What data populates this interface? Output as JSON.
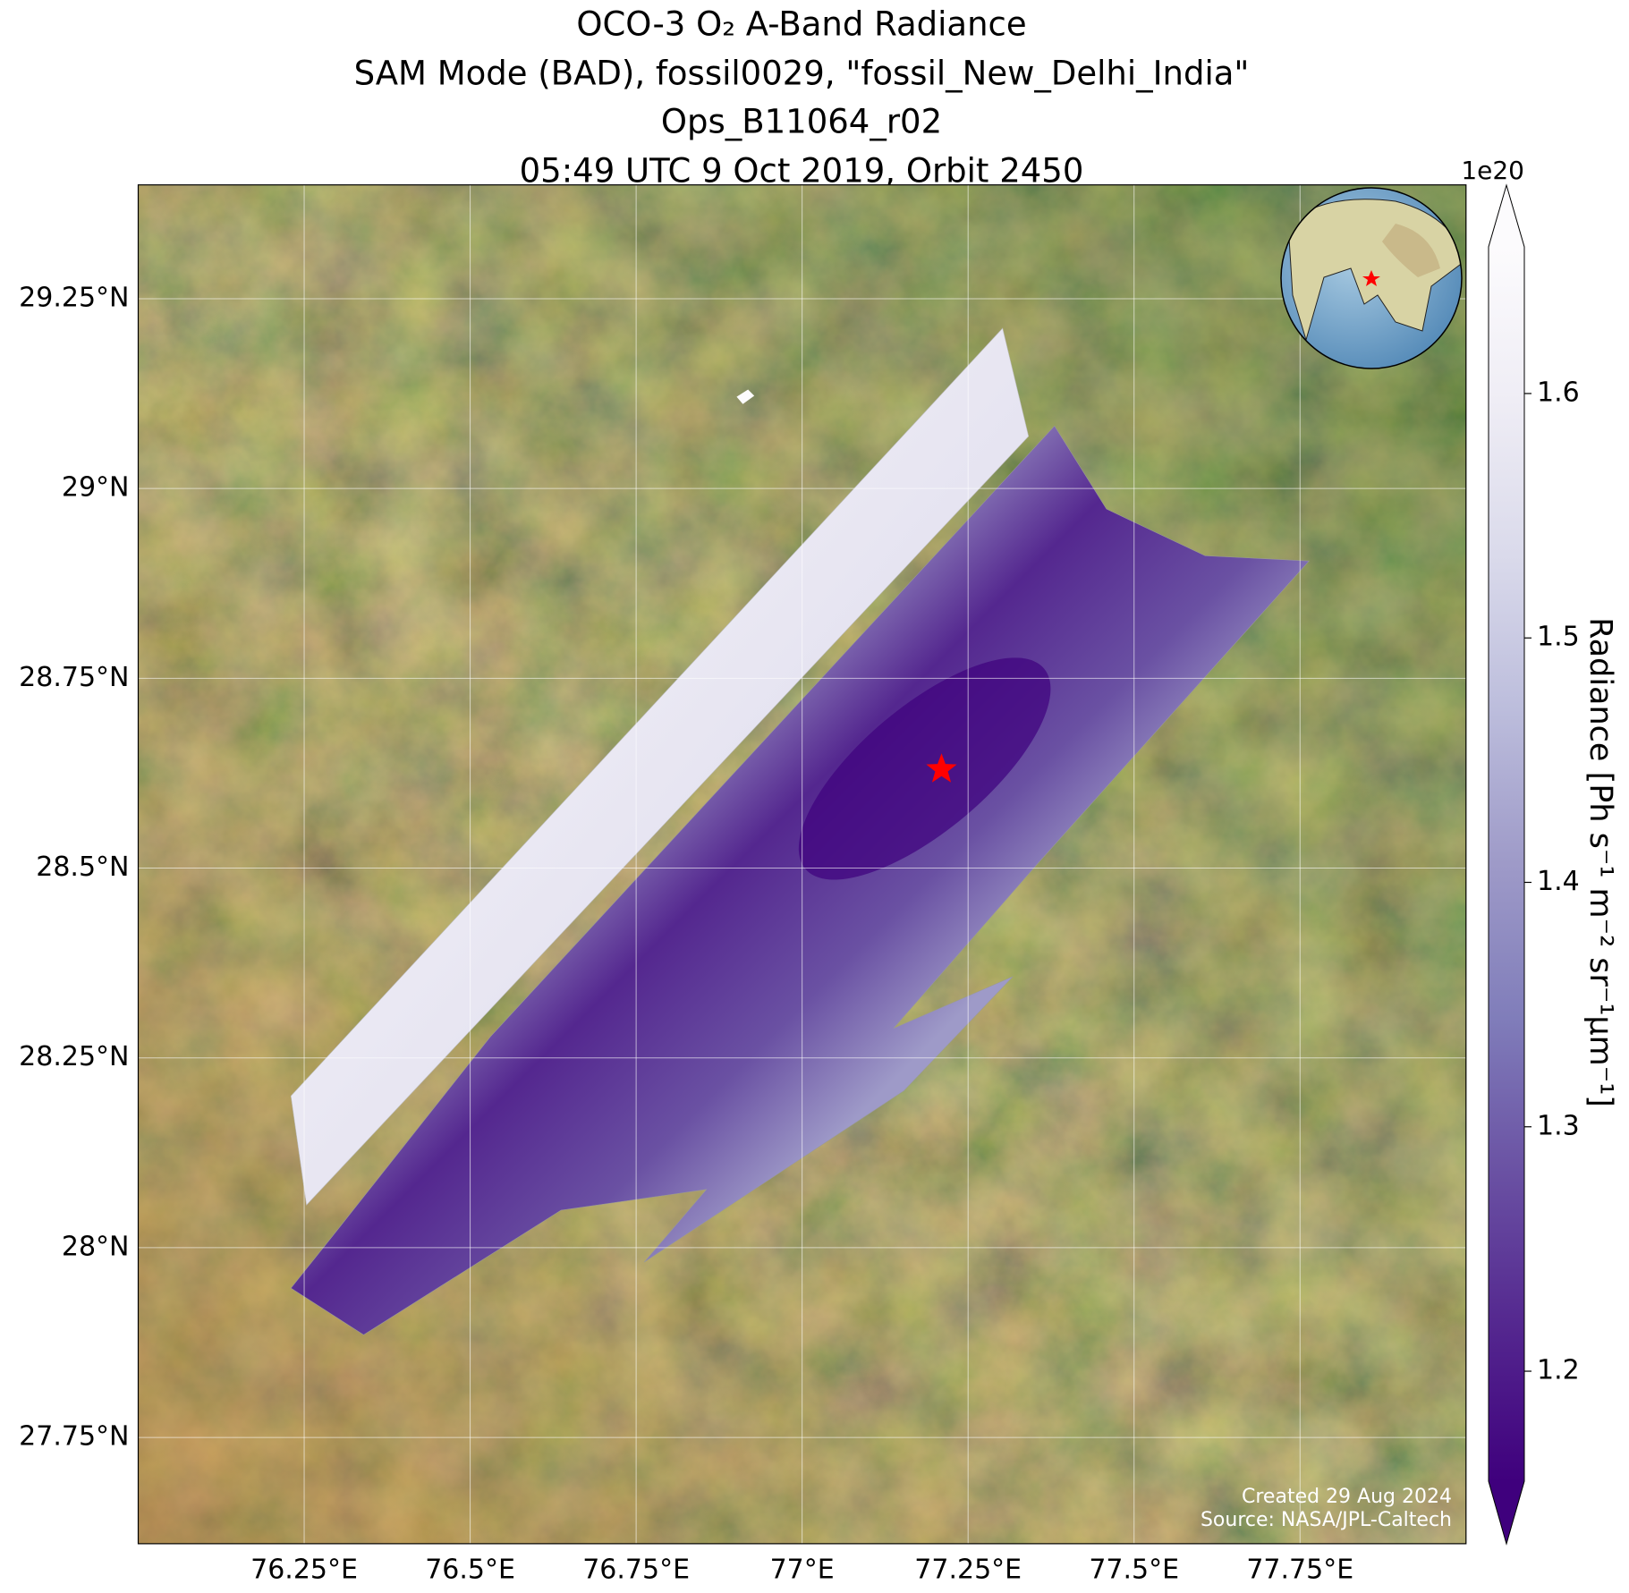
{
  "chart_data": {
    "type": "map",
    "title": [
      "OCO-3 O₂ A-Band Radiance",
      "SAM Mode (BAD), fossil0029, \"fossil_New_Delhi_India\"",
      "Ops_B11064_r02",
      "05:49 UTC 9 Oct 2019, Orbit 2450"
    ],
    "xlim": [
      76.0,
      78.0
    ],
    "ylim": [
      27.61,
      29.4
    ],
    "xticks": [
      {
        "value": 76.25,
        "label": "76.25°E"
      },
      {
        "value": 76.5,
        "label": "76.5°E"
      },
      {
        "value": 76.75,
        "label": "76.75°E"
      },
      {
        "value": 77,
        "label": "77°E"
      },
      {
        "value": 77.25,
        "label": "77.25°E"
      },
      {
        "value": 77.5,
        "label": "77.5°E"
      },
      {
        "value": 77.75,
        "label": "77.75°E"
      }
    ],
    "yticks": [
      {
        "value": 27.75,
        "label": "27.75°N"
      },
      {
        "value": 28,
        "label": "28°N"
      },
      {
        "value": 28.25,
        "label": "28.25°N"
      },
      {
        "value": 28.5,
        "label": "28.5°N"
      },
      {
        "value": 28.75,
        "label": "28.75°N"
      },
      {
        "value": 29,
        "label": "29°N"
      },
      {
        "value": 29.25,
        "label": "29.25°N"
      }
    ],
    "grid": true,
    "target": {
      "lon": 77.21,
      "lat": 28.63,
      "color": "#ff0000"
    },
    "colorbar": {
      "label": "Radiance [Ph s⁻¹ m⁻² sr⁻¹μm⁻¹]",
      "offset_label": "1e20",
      "lim": [
        1.155,
        1.66
      ],
      "ticks": [
        1.2,
        1.3,
        1.4,
        1.5,
        1.6
      ],
      "colors": [
        "#3f007d",
        "#54278f",
        "#6a51a3",
        "#807dba",
        "#9e9ac8",
        "#bcbddc",
        "#dadaeb",
        "#efedf5",
        "#fcfbfd"
      ],
      "extend": "both"
    },
    "credits": [
      "Created 29 Aug 2024",
      "Source: NASA/JPL-Caltech"
    ]
  }
}
